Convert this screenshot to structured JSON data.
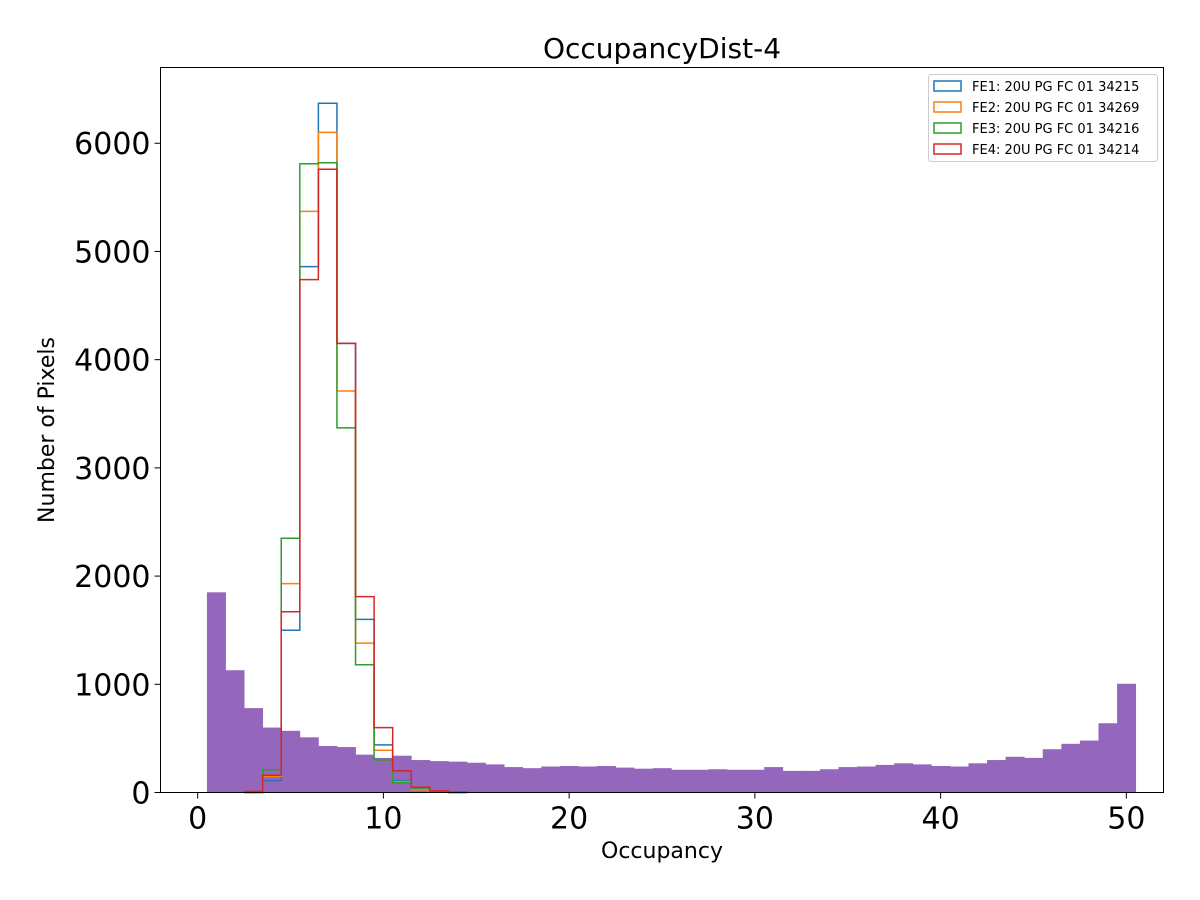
{
  "chart_data": {
    "type": "histogram",
    "title": "OccupancyDist-4",
    "xlabel": "Occupancy",
    "ylabel": "Number of Pixels",
    "xlim": [
      -2.0,
      52.0
    ],
    "ylim": [
      0,
      6700
    ],
    "xticks": [
      0,
      10,
      20,
      30,
      40,
      50
    ],
    "yticks": [
      0,
      1000,
      2000,
      3000,
      4000,
      5000,
      6000
    ],
    "legend_position": "top-right",
    "filled_series": {
      "name": "",
      "color": "#9467bd",
      "bin_start": 0.5,
      "bin_width": 1,
      "values": [
        1850,
        1130,
        780,
        600,
        570,
        510,
        430,
        420,
        350,
        320,
        340,
        300,
        290,
        285,
        275,
        260,
        235,
        225,
        240,
        245,
        240,
        245,
        230,
        220,
        225,
        210,
        210,
        215,
        210,
        210,
        235,
        200,
        200,
        215,
        235,
        240,
        255,
        270,
        260,
        245,
        240,
        270,
        300,
        330,
        320,
        400,
        450,
        480,
        640,
        1005
      ]
    },
    "series": [
      {
        "name": "FE1: 20U PG FC 01 34215",
        "color": "#1f77b4",
        "bin_start": 2.5,
        "bin_width": 1,
        "values": [
          0,
          110,
          1500,
          4860,
          6370,
          4150,
          1600,
          440,
          110,
          30,
          10,
          0
        ]
      },
      {
        "name": "FE2: 20U PG FC 01 34269",
        "color": "#ff7f0e",
        "bin_start": 2.5,
        "bin_width": 1,
        "values": [
          10,
          150,
          1930,
          5370,
          6100,
          3710,
          1380,
          390,
          100,
          25,
          5,
          0
        ]
      },
      {
        "name": "FE3: 20U PG FC 01 34216",
        "color": "#2ca02c",
        "bin_start": 2.5,
        "bin_width": 1,
        "values": [
          0,
          210,
          2350,
          5810,
          5820,
          3370,
          1180,
          300,
          90,
          40,
          10,
          0
        ]
      },
      {
        "name": "FE4: 20U PG FC 01 34214",
        "color": "#d62728",
        "bin_start": 2.5,
        "bin_width": 1,
        "values": [
          10,
          160,
          1670,
          4740,
          5760,
          4150,
          1810,
          600,
          200,
          50,
          15,
          5
        ]
      }
    ]
  }
}
